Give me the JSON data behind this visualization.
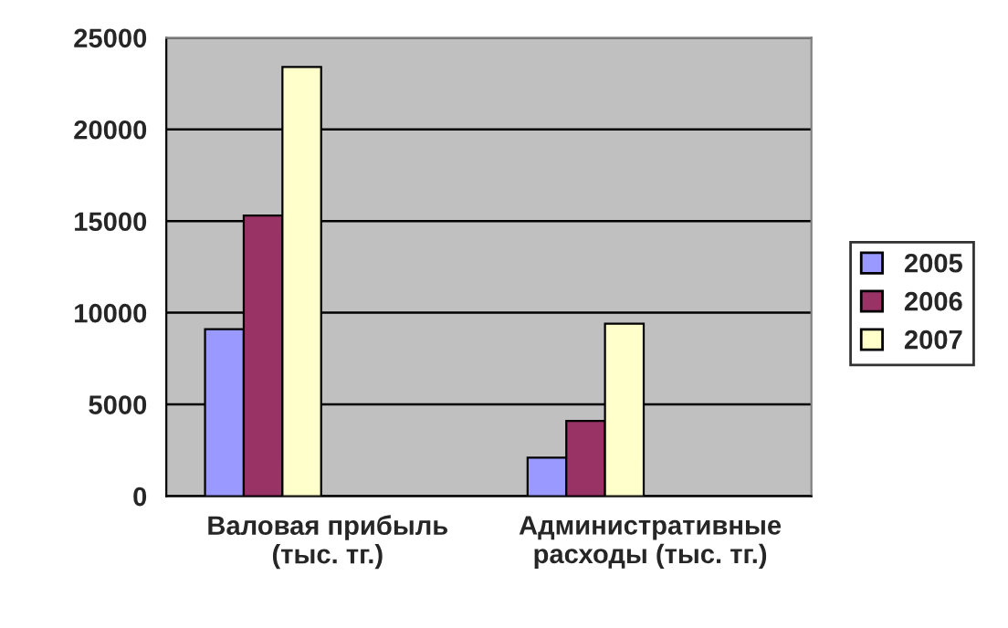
{
  "chart_data": {
    "type": "bar",
    "categories": [
      "Валовая прибыль\n(тыс. тг.)",
      "Административные\nрасходы (тыс. тг.)"
    ],
    "series": [
      {
        "name": "2005",
        "color": "#9999ff",
        "values": [
          9100,
          2100
        ]
      },
      {
        "name": "2006",
        "color": "#993366",
        "values": [
          15300,
          4100
        ]
      },
      {
        "name": "2007",
        "color": "#ffffcc",
        "values": [
          23400,
          9400
        ]
      }
    ],
    "ylim": [
      0,
      25000
    ],
    "yticks": [
      0,
      5000,
      10000,
      15000,
      20000,
      25000
    ],
    "grid": "y",
    "legend": "right"
  }
}
